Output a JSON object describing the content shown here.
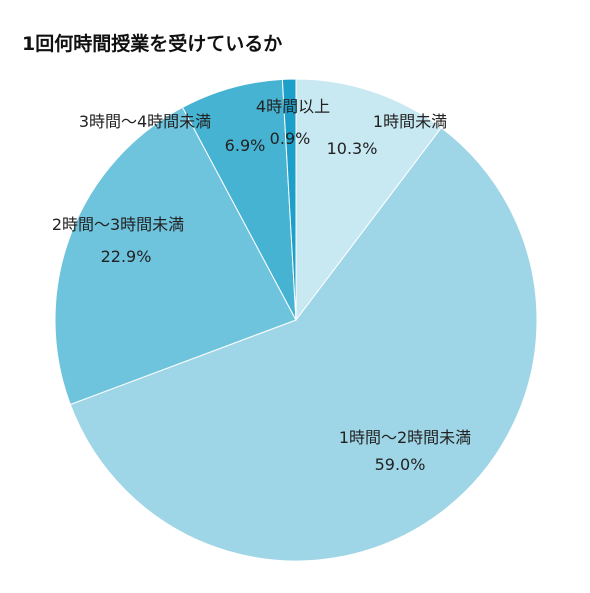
{
  "chart_data": {
    "type": "pie",
    "title": "1回何時間授業を受けているか",
    "slices": [
      {
        "label": "1時間未満",
        "value": 10.3,
        "value_label": "10.3%",
        "color": "#c8e8f2"
      },
      {
        "label": "1時間〜2時間未満",
        "value": 59.0,
        "value_label": "59.0%",
        "color": "#9fd6e7"
      },
      {
        "label": "2時間〜3時間未満",
        "value": 22.9,
        "value_label": "22.9%",
        "color": "#6ec3dd"
      },
      {
        "label": "3時間〜4時間未満",
        "value": 6.9,
        "value_label": "6.9%",
        "color": "#47b3d3"
      },
      {
        "label": "4時間以上",
        "value": 0.9,
        "value_label": "0.9%",
        "color": "#1c9fc9"
      }
    ],
    "start_angle": "12 o'clock",
    "direction": "clockwise",
    "legend": "none"
  }
}
